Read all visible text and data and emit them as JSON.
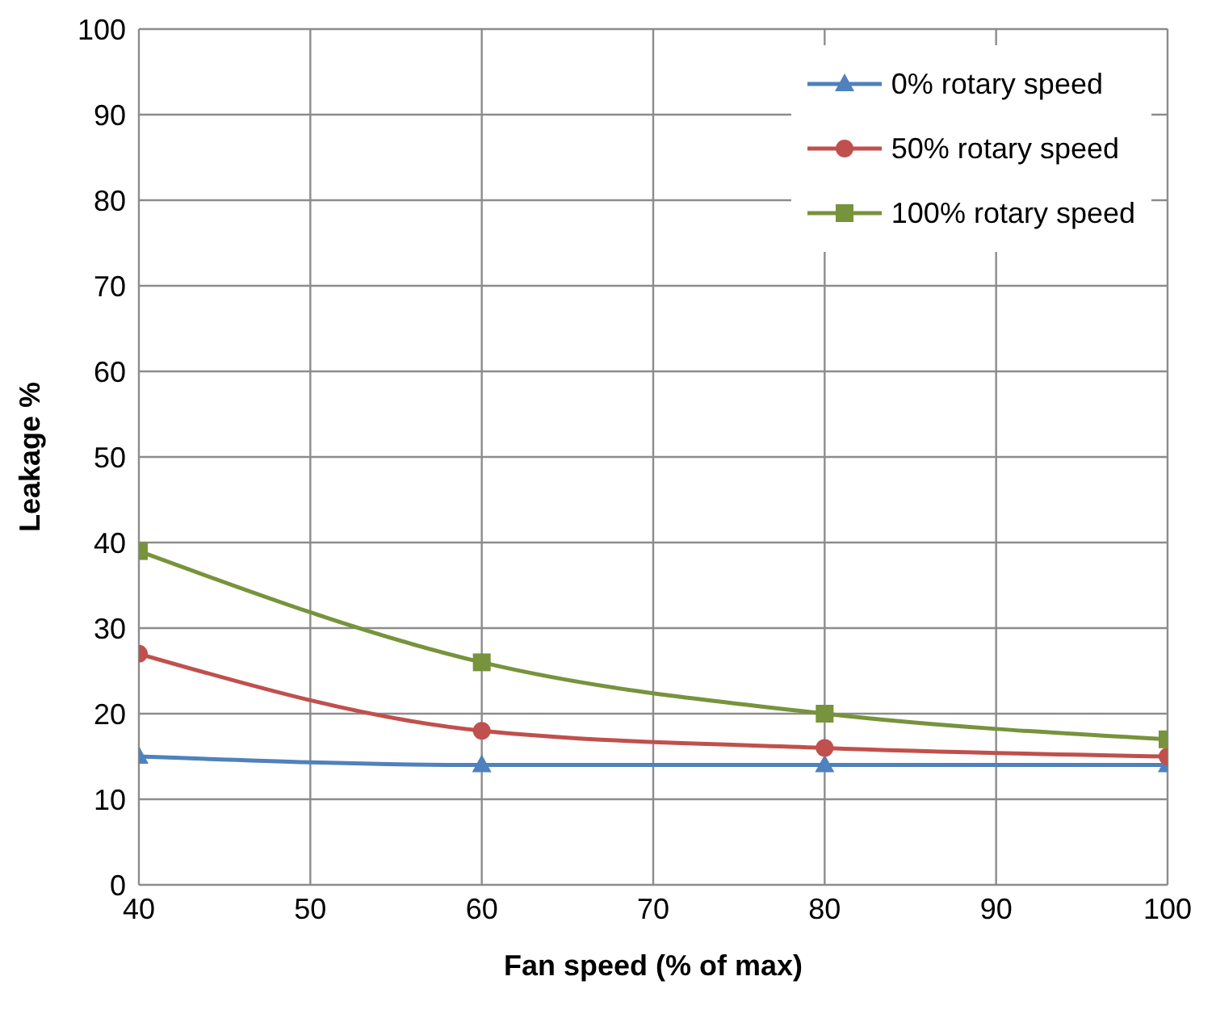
{
  "chart_data": {
    "type": "line",
    "xlabel": "Fan speed (% of max)",
    "ylabel": "Leakage %",
    "x": [
      40,
      60,
      80,
      100
    ],
    "series": [
      {
        "name": "0% rotary speed",
        "color": "#4f81bd",
        "marker": "triangle",
        "values": [
          15,
          14,
          14,
          14
        ]
      },
      {
        "name": "50% rotary speed",
        "color": "#c0504d",
        "marker": "circle",
        "values": [
          27,
          18,
          16,
          15
        ]
      },
      {
        "name": "100% rotary speed",
        "color": "#77933c",
        "marker": "square",
        "values": [
          39,
          26,
          20,
          17
        ]
      }
    ],
    "xlim": [
      40,
      100
    ],
    "xticks": [
      40,
      50,
      60,
      70,
      80,
      90,
      100
    ],
    "ylim": [
      0,
      100
    ],
    "yticks": [
      0,
      10,
      20,
      30,
      40,
      50,
      60,
      70,
      80,
      90,
      100
    ],
    "grid": true,
    "legend": "top right"
  }
}
